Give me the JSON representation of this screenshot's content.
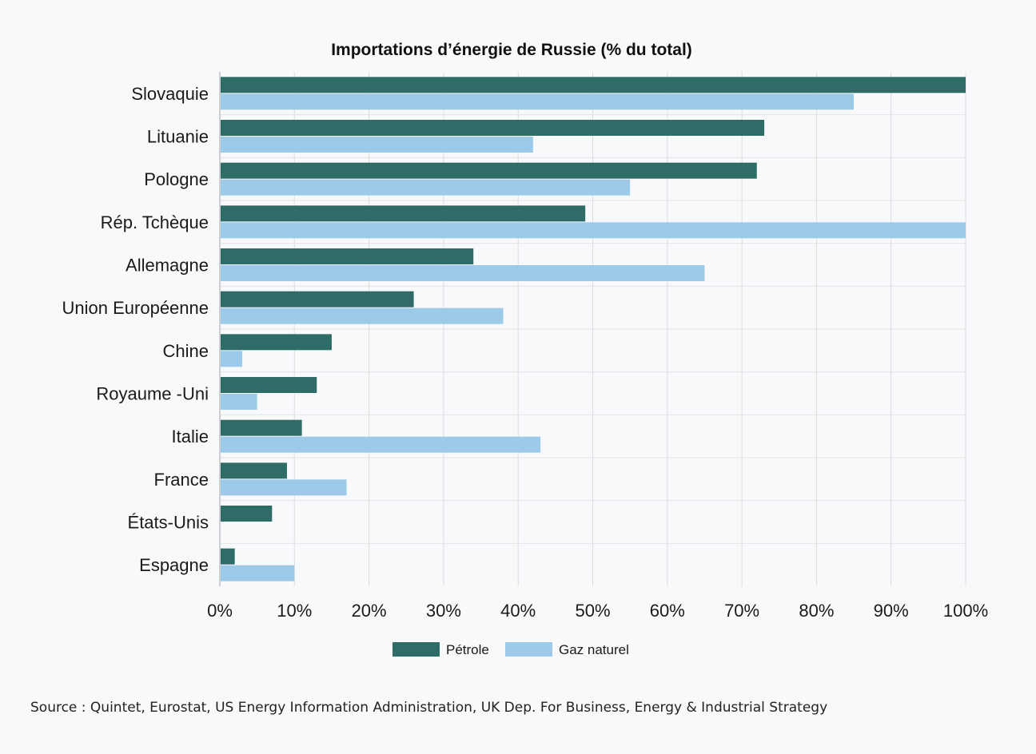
{
  "source": "Source : Quintet, Eurostat, US Energy Information Administration, UK Dep. For Business, Energy & Industrial Strategy",
  "chart_data": {
    "type": "bar",
    "orientation": "horizontal",
    "title": "Importations d’énergie de Russie (% du total)",
    "xlabel": "",
    "ylabel": "",
    "xlim": [
      0,
      100
    ],
    "x_ticks": [
      "0%",
      "10%",
      "20%",
      "30%",
      "40%",
      "50%",
      "60%",
      "70%",
      "80%",
      "90%",
      "100%"
    ],
    "grid": true,
    "legend_position": "bottom",
    "categories": [
      "Slovaquie",
      "Lituanie",
      "Pologne",
      "Rép. Tchèque",
      "Allemagne",
      "Union Européenne",
      "Chine",
      "Royaume -Uni",
      "Italie",
      "France",
      "États-Unis",
      "Espagne"
    ],
    "series": [
      {
        "name": "Pétrole",
        "color": "#2f6b67",
        "values": [
          100,
          73,
          72,
          49,
          34,
          26,
          15,
          13,
          11,
          9,
          7,
          2
        ]
      },
      {
        "name": "Gaz naturel",
        "color": "#9ecae9",
        "values": [
          85,
          42,
          55,
          100,
          65,
          38,
          3,
          5,
          43,
          17,
          0,
          10
        ]
      }
    ]
  }
}
